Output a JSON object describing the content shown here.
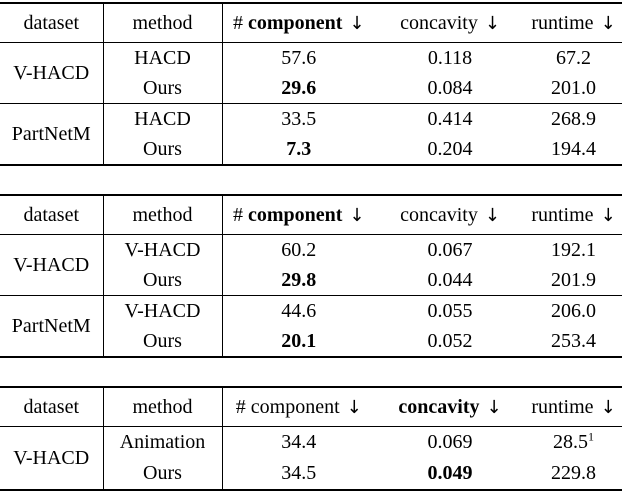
{
  "page": {
    "background": "#ffffff",
    "text_color": "#000000",
    "rule_color": "#000000"
  },
  "down_arrow": "↓",
  "tables": [
    {
      "headers": {
        "dataset": "dataset",
        "method": "method",
        "component_hash": "#",
        "component_word": "component",
        "concavity": "concavity",
        "runtime": "runtime"
      },
      "emphasized_column": "component",
      "groups": [
        {
          "dataset": "V-HACD",
          "rows": [
            {
              "method": "HACD",
              "component": "57.6",
              "concavity": "0.118",
              "runtime": "67.2"
            },
            {
              "method": "Ours",
              "component": "29.6",
              "concavity": "0.084",
              "runtime": "201.0"
            }
          ]
        },
        {
          "dataset": "PartNetM",
          "rows": [
            {
              "method": "HACD",
              "component": "33.5",
              "concavity": "0.414",
              "runtime": "268.9"
            },
            {
              "method": "Ours",
              "component": "7.3",
              "concavity": "0.204",
              "runtime": "194.4"
            }
          ]
        }
      ]
    },
    {
      "headers": {
        "dataset": "dataset",
        "method": "method",
        "component_hash": "#",
        "component_word": "component",
        "concavity": "concavity",
        "runtime": "runtime"
      },
      "emphasized_column": "component",
      "groups": [
        {
          "dataset": "V-HACD",
          "rows": [
            {
              "method": "V-HACD",
              "component": "60.2",
              "concavity": "0.067",
              "runtime": "192.1"
            },
            {
              "method": "Ours",
              "component": "29.8",
              "concavity": "0.044",
              "runtime": "201.9"
            }
          ]
        },
        {
          "dataset": "PartNetM",
          "rows": [
            {
              "method": "V-HACD",
              "component": "44.6",
              "concavity": "0.055",
              "runtime": "206.0"
            },
            {
              "method": "Ours",
              "component": "20.1",
              "concavity": "0.052",
              "runtime": "253.4"
            }
          ]
        }
      ]
    },
    {
      "headers": {
        "dataset": "dataset",
        "method": "method",
        "component_hash": "#",
        "component_word": "component",
        "concavity": "concavity",
        "runtime": "runtime"
      },
      "emphasized_column": "concavity",
      "groups": [
        {
          "dataset": "V-HACD",
          "rows": [
            {
              "method": "Animation",
              "component": "34.4",
              "concavity": "0.069",
              "runtime": "28.5",
              "runtime_sup": "1"
            },
            {
              "method": "Ours",
              "component": "34.5",
              "concavity": "0.049",
              "runtime": "229.8"
            }
          ]
        }
      ]
    }
  ]
}
